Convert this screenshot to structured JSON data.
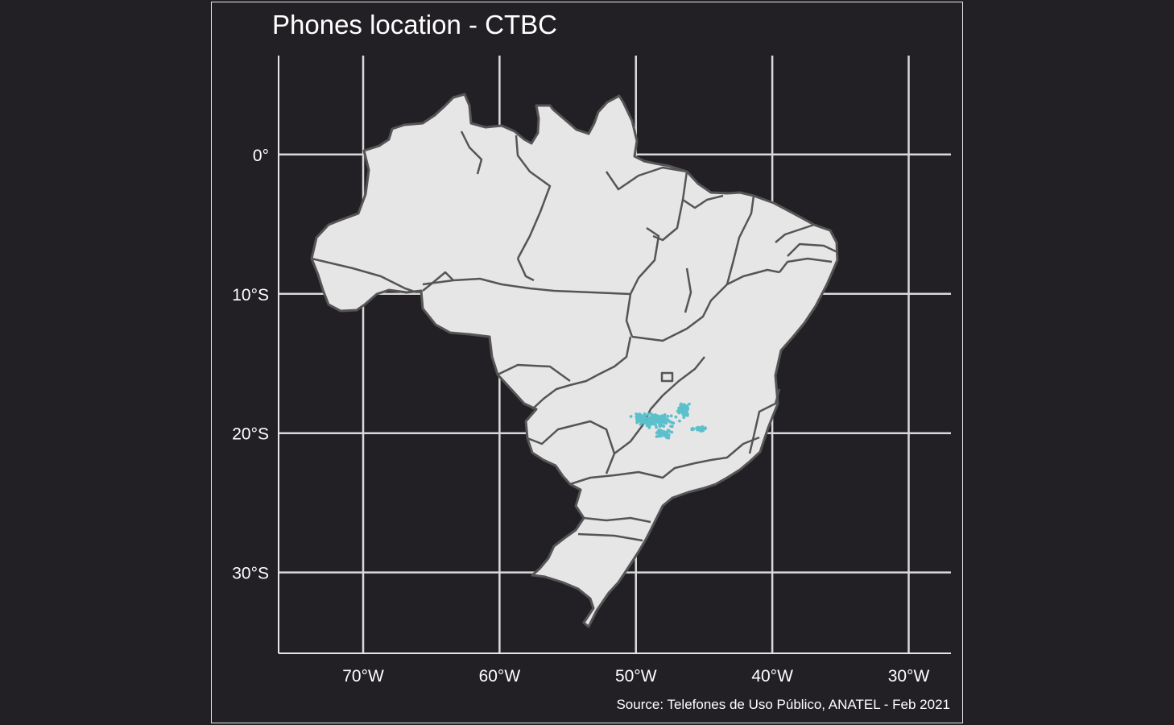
{
  "title": "Phones location - CTBC",
  "caption": "Source: Telefones de Uso Público, ANATEL - Feb 2021",
  "colors": {
    "background": "#222024",
    "land": "#e6e6e6",
    "border": "#555555",
    "grid": "#d9d9d9",
    "points": "#5bc0cc"
  },
  "chart_data": {
    "type": "scatter",
    "xlim": [
      -76.2,
      -26.9
    ],
    "ylim": [
      -35.8,
      7.1
    ],
    "x_ticks": [
      {
        "value": -70,
        "label": "70°W"
      },
      {
        "value": -60,
        "label": "60°W"
      },
      {
        "value": -50,
        "label": "50°W"
      },
      {
        "value": -40,
        "label": "40°W"
      },
      {
        "value": -30,
        "label": "30°W"
      }
    ],
    "y_ticks": [
      {
        "value": 0,
        "label": "0°"
      },
      {
        "value": -10,
        "label": "10°S"
      },
      {
        "value": -20,
        "label": "20°S"
      },
      {
        "value": -30,
        "label": "30°S"
      }
    ],
    "grid": true,
    "region": "Brazil (states outline)",
    "point_clusters": [
      {
        "lon": -48.5,
        "lat": -19.1,
        "spread_lon": 1.9,
        "spread_lat": 0.6,
        "count": 130
      },
      {
        "lon": -49.6,
        "lat": -18.9,
        "spread_lon": 1.0,
        "spread_lat": 0.5,
        "count": 45
      },
      {
        "lon": -48.0,
        "lat": -20.0,
        "spread_lon": 0.8,
        "spread_lat": 0.4,
        "count": 45
      },
      {
        "lon": -46.5,
        "lat": -18.3,
        "spread_lon": 0.5,
        "spread_lat": 0.8,
        "count": 60
      },
      {
        "lon": -45.4,
        "lat": -19.7,
        "spread_lon": 0.8,
        "spread_lat": 0.2,
        "count": 30
      }
    ]
  }
}
